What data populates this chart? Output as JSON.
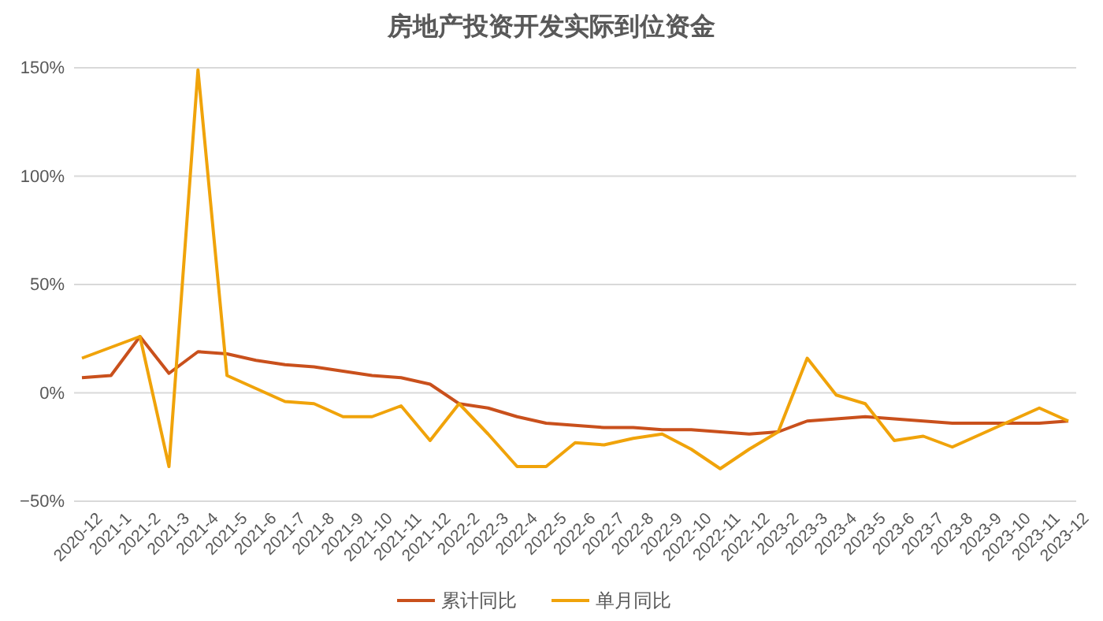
{
  "chart_data": {
    "type": "line",
    "title": "房地产投资开发实际到位资金",
    "categories": [
      "2020-12",
      "2021-1",
      "2021-2",
      "2021-3",
      "2021-4",
      "2021-5",
      "2021-6",
      "2021-7",
      "2021-8",
      "2021-9",
      "2021-10",
      "2021-11",
      "2021-12",
      "2022-2",
      "2022-3",
      "2022-4",
      "2022-5",
      "2022-6",
      "2022-7",
      "2022-8",
      "2022-9",
      "2022-10",
      "2022-11",
      "2022-12",
      "2023-2",
      "2023-3",
      "2023-4",
      "2023-5",
      "2023-6",
      "2023-7",
      "2023-8",
      "2023-9",
      "2023-10",
      "2023-11",
      "2023-12"
    ],
    "series": [
      {
        "name": "累计同比",
        "color": "#c9501c",
        "values": [
          7,
          8,
          26,
          9,
          19,
          18,
          15,
          13,
          12,
          10,
          8,
          7,
          4,
          -5,
          -7,
          -11,
          -14,
          -15,
          -16,
          -16,
          -17,
          -17,
          -18,
          -19,
          -18,
          -13,
          -12,
          -11,
          -12,
          -13,
          -14,
          -14,
          -14,
          -14,
          -13
        ]
      },
      {
        "name": "单月同比",
        "color": "#f0a30a",
        "values": [
          16,
          21,
          26,
          -34,
          149,
          8,
          2,
          -4,
          -5,
          -11,
          -11,
          -6,
          -22,
          -5,
          -19,
          -34,
          -34,
          -23,
          -24,
          -21,
          -19,
          -26,
          -35,
          -26,
          -18,
          16,
          -1,
          -5,
          -22,
          -20,
          -25,
          -19,
          -13,
          -7,
          -13
        ]
      }
    ],
    "ylim": [
      -50,
      150
    ],
    "yticks": [
      {
        "value": -50,
        "label": "−50%"
      },
      {
        "value": 0,
        "label": "0%"
      },
      {
        "value": 50,
        "label": "50%"
      },
      {
        "value": 100,
        "label": "100%"
      },
      {
        "value": 150,
        "label": "150%"
      }
    ],
    "grid": "y",
    "legend": "bottom",
    "marker": "none",
    "line_style": "solid"
  }
}
